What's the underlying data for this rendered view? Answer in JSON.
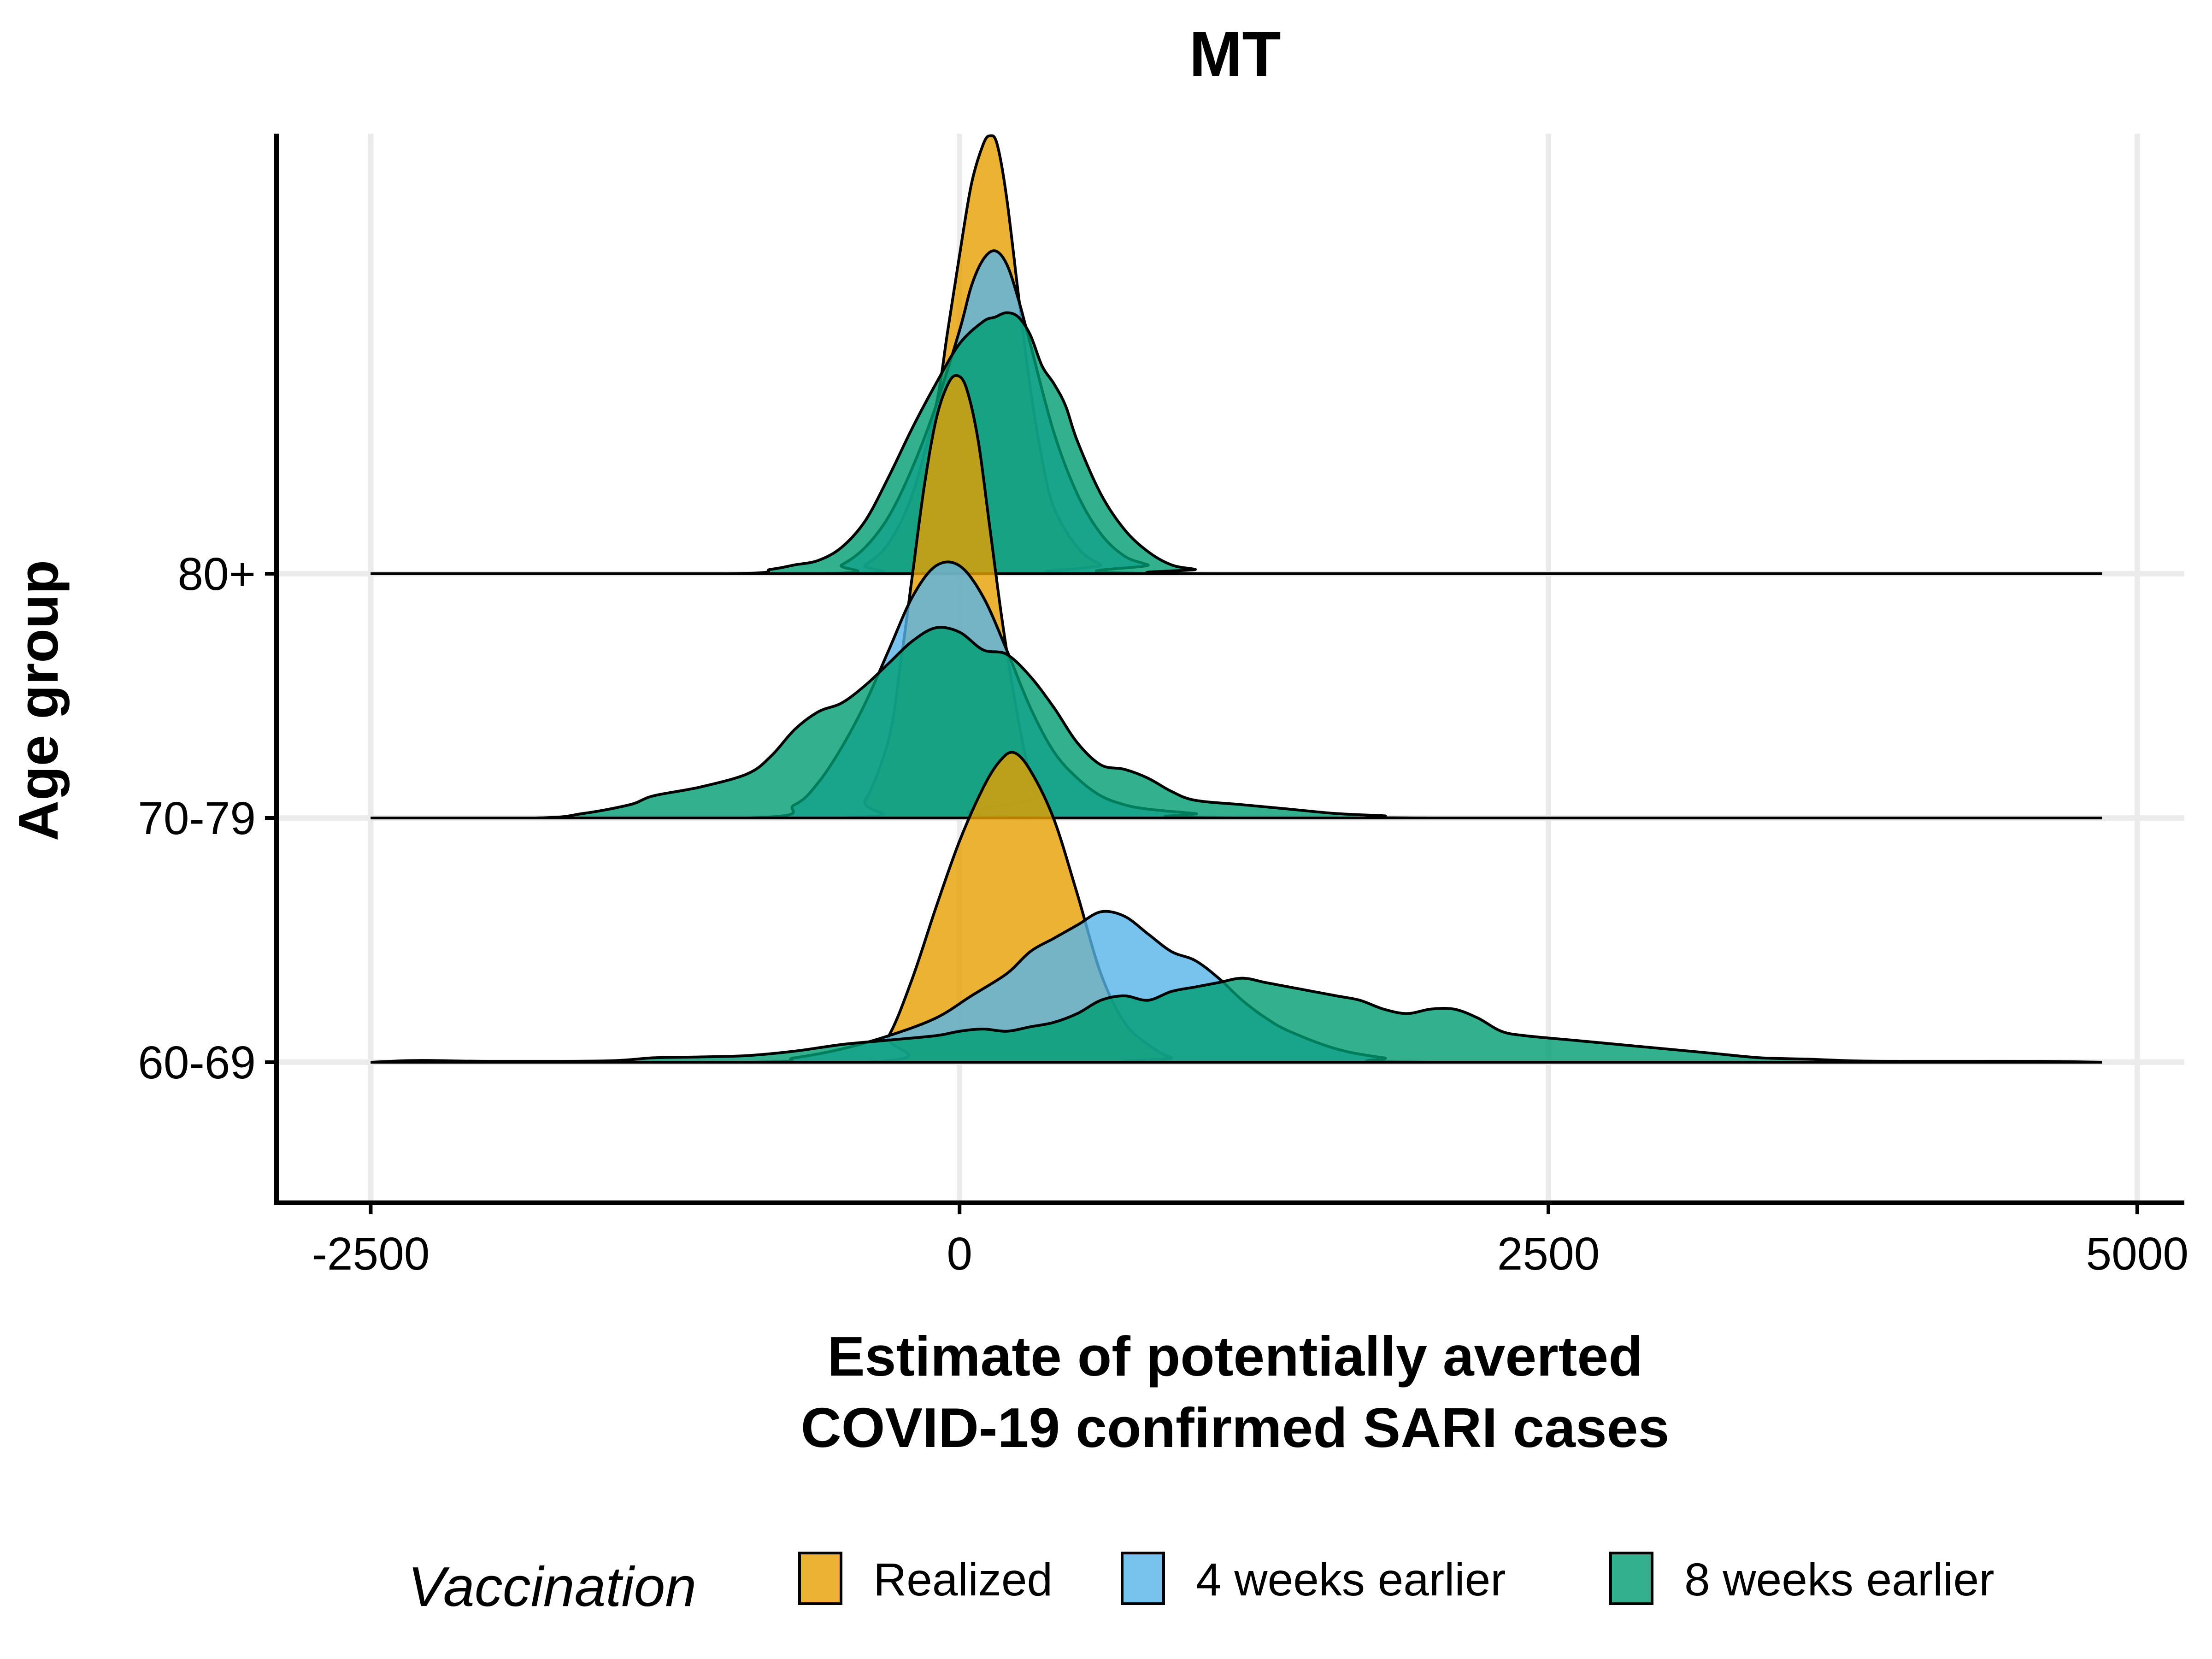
{
  "chart_data": {
    "type": "ridgeline",
    "title": "MT",
    "xlabel": [
      "Estimate of potentially averted",
      "COVID-19 confirmed SARI cases"
    ],
    "ylabel": "Age group",
    "xlim": [
      -2900,
      5200
    ],
    "x_ticks": [
      -2500,
      0,
      2500,
      5000
    ],
    "x_tick_labels": [
      "-2500",
      "0",
      "2500",
      "5000"
    ],
    "grid": true,
    "legend": {
      "title": "Vaccination",
      "position": "bottom",
      "items": [
        {
          "label": "Realized",
          "color": "#E69F00"
        },
        {
          "label": "4 weeks earlier",
          "color": "#56B4E9"
        },
        {
          "label": "8 weeks earlier",
          "color": "#009E73"
        }
      ]
    },
    "x_range": [
      -2500,
      4850
    ],
    "groups": [
      {
        "name": "60-69",
        "series": [
          {
            "name": "Realized",
            "color": "#E69F00",
            "points": [
              [
                -2500,
                0
              ],
              [
                -400,
                0
              ],
              [
                -300,
                0.06
              ],
              [
                -200,
                0.19
              ],
              [
                -100,
                0.35
              ],
              [
                0,
                0.5
              ],
              [
                100,
                0.62
              ],
              [
                170,
                0.68
              ],
              [
                230,
                0.7
              ],
              [
                300,
                0.66
              ],
              [
                400,
                0.55
              ],
              [
                500,
                0.38
              ],
              [
                600,
                0.2
              ],
              [
                700,
                0.09
              ],
              [
                800,
                0.04
              ],
              [
                900,
                0.01
              ],
              [
                1000,
                0
              ],
              [
                4850,
                0
              ]
            ]
          },
          {
            "name": "4 weeks earlier",
            "color": "#56B4E9",
            "points": [
              [
                -2500,
                0
              ],
              [
                -900,
                0
              ],
              [
                -700,
                0.01
              ],
              [
                -500,
                0.03
              ],
              [
                -300,
                0.06
              ],
              [
                -100,
                0.1
              ],
              [
                50,
                0.15
              ],
              [
                200,
                0.2
              ],
              [
                300,
                0.25
              ],
              [
                400,
                0.28
              ],
              [
                500,
                0.31
              ],
              [
                600,
                0.34
              ],
              [
                700,
                0.33
              ],
              [
                800,
                0.29
              ],
              [
                900,
                0.25
              ],
              [
                1000,
                0.23
              ],
              [
                1100,
                0.19
              ],
              [
                1200,
                0.14
              ],
              [
                1300,
                0.1
              ],
              [
                1400,
                0.07
              ],
              [
                1600,
                0.03
              ],
              [
                1800,
                0.01
              ],
              [
                2000,
                0
              ],
              [
                4850,
                0
              ]
            ]
          },
          {
            "name": "8 weeks earlier",
            "color": "#009E73",
            "points": [
              [
                -2500,
                0
              ],
              [
                -2300,
                0.004
              ],
              [
                -2000,
                0.002
              ],
              [
                -1500,
                0.003
              ],
              [
                -1300,
                0.01
              ],
              [
                -1100,
                0.012
              ],
              [
                -900,
                0.015
              ],
              [
                -700,
                0.025
              ],
              [
                -500,
                0.04
              ],
              [
                -300,
                0.05
              ],
              [
                -100,
                0.06
              ],
              [
                0,
                0.07
              ],
              [
                100,
                0.075
              ],
              [
                200,
                0.07
              ],
              [
                300,
                0.08
              ],
              [
                400,
                0.09
              ],
              [
                500,
                0.11
              ],
              [
                600,
                0.14
              ],
              [
                700,
                0.15
              ],
              [
                800,
                0.14
              ],
              [
                900,
                0.16
              ],
              [
                1000,
                0.17
              ],
              [
                1100,
                0.18
              ],
              [
                1200,
                0.19
              ],
              [
                1300,
                0.18
              ],
              [
                1400,
                0.17
              ],
              [
                1500,
                0.16
              ],
              [
                1600,
                0.15
              ],
              [
                1700,
                0.14
              ],
              [
                1800,
                0.12
              ],
              [
                1900,
                0.11
              ],
              [
                2000,
                0.12
              ],
              [
                2100,
                0.12
              ],
              [
                2200,
                0.1
              ],
              [
                2300,
                0.07
              ],
              [
                2400,
                0.06
              ],
              [
                2600,
                0.05
              ],
              [
                2800,
                0.04
              ],
              [
                3000,
                0.03
              ],
              [
                3200,
                0.02
              ],
              [
                3400,
                0.01
              ],
              [
                3600,
                0.007
              ],
              [
                3800,
                0.003
              ],
              [
                4000,
                0.002
              ],
              [
                4300,
                0.002
              ],
              [
                4600,
                0.002
              ],
              [
                4850,
                0
              ]
            ]
          }
        ]
      },
      {
        "name": "70-79",
        "series": [
          {
            "name": "Realized",
            "color": "#E69F00",
            "points": [
              [
                -2500,
                0
              ],
              [
                -500,
                0
              ],
              [
                -400,
                0.04
              ],
              [
                -300,
                0.18
              ],
              [
                -250,
                0.35
              ],
              [
                -200,
                0.55
              ],
              [
                -150,
                0.75
              ],
              [
                -100,
                0.9
              ],
              [
                -50,
                0.98
              ],
              [
                -10,
                1.0
              ],
              [
                30,
                0.97
              ],
              [
                80,
                0.85
              ],
              [
                130,
                0.65
              ],
              [
                180,
                0.45
              ],
              [
                230,
                0.28
              ],
              [
                280,
                0.14
              ],
              [
                330,
                0.05
              ],
              [
                380,
                0
              ],
              [
                4850,
                0
              ]
            ]
          },
          {
            "name": "4 weeks earlier",
            "color": "#56B4E9",
            "points": [
              [
                -2500,
                0
              ],
              [
                -900,
                0
              ],
              [
                -700,
                0.03
              ],
              [
                -600,
                0.08
              ],
              [
                -500,
                0.16
              ],
              [
                -400,
                0.26
              ],
              [
                -300,
                0.38
              ],
              [
                -200,
                0.5
              ],
              [
                -100,
                0.57
              ],
              [
                0,
                0.57
              ],
              [
                100,
                0.5
              ],
              [
                200,
                0.38
              ],
              [
                300,
                0.25
              ],
              [
                400,
                0.15
              ],
              [
                500,
                0.09
              ],
              [
                600,
                0.05
              ],
              [
                700,
                0.03
              ],
              [
                800,
                0.02
              ],
              [
                1000,
                0.01
              ],
              [
                1200,
                0
              ],
              [
                4850,
                0
              ]
            ]
          },
          {
            "name": "8 weeks earlier",
            "color": "#009E73",
            "points": [
              [
                -2500,
                0
              ],
              [
                -1800,
                0
              ],
              [
                -1600,
                0.01
              ],
              [
                -1400,
                0.03
              ],
              [
                -1300,
                0.05
              ],
              [
                -1100,
                0.07
              ],
              [
                -900,
                0.1
              ],
              [
                -800,
                0.14
              ],
              [
                -700,
                0.2
              ],
              [
                -600,
                0.24
              ],
              [
                -500,
                0.26
              ],
              [
                -400,
                0.3
              ],
              [
                -300,
                0.35
              ],
              [
                -200,
                0.4
              ],
              [
                -100,
                0.43
              ],
              [
                0,
                0.42
              ],
              [
                100,
                0.38
              ],
              [
                200,
                0.37
              ],
              [
                300,
                0.32
              ],
              [
                400,
                0.25
              ],
              [
                500,
                0.17
              ],
              [
                600,
                0.12
              ],
              [
                700,
                0.11
              ],
              [
                800,
                0.09
              ],
              [
                900,
                0.06
              ],
              [
                1000,
                0.04
              ],
              [
                1200,
                0.03
              ],
              [
                1400,
                0.02
              ],
              [
                1600,
                0.01
              ],
              [
                1800,
                0.005
              ],
              [
                2000,
                0
              ],
              [
                4850,
                0
              ]
            ]
          }
        ]
      },
      {
        "name": "80+",
        "series": [
          {
            "name": "Realized",
            "color": "#E69F00",
            "points": [
              [
                -2500,
                0
              ],
              [
                -500,
                0
              ],
              [
                -400,
                0.02
              ],
              [
                -300,
                0.07
              ],
              [
                -200,
                0.18
              ],
              [
                -100,
                0.38
              ],
              [
                -50,
                0.55
              ],
              [
                0,
                0.72
              ],
              [
                50,
                0.88
              ],
              [
                100,
                0.97
              ],
              [
                130,
                0.99
              ],
              [
                160,
                0.97
              ],
              [
                200,
                0.85
              ],
              [
                250,
                0.63
              ],
              [
                300,
                0.42
              ],
              [
                350,
                0.26
              ],
              [
                400,
                0.15
              ],
              [
                500,
                0.06
              ],
              [
                600,
                0.02
              ],
              [
                700,
                0
              ],
              [
                4850,
                0
              ]
            ]
          },
          {
            "name": "4 weeks earlier",
            "color": "#56B4E9",
            "points": [
              [
                -2500,
                0
              ],
              [
                -600,
                0
              ],
              [
                -500,
                0.02
              ],
              [
                -400,
                0.06
              ],
              [
                -300,
                0.13
              ],
              [
                -200,
                0.24
              ],
              [
                -100,
                0.38
              ],
              [
                0,
                0.55
              ],
              [
                50,
                0.65
              ],
              [
                100,
                0.71
              ],
              [
                150,
                0.73
              ],
              [
                200,
                0.7
              ],
              [
                250,
                0.62
              ],
              [
                300,
                0.52
              ],
              [
                400,
                0.32
              ],
              [
                500,
                0.18
              ],
              [
                600,
                0.09
              ],
              [
                700,
                0.04
              ],
              [
                800,
                0.02
              ],
              [
                900,
                0
              ],
              [
                4850,
                0
              ]
            ]
          },
          {
            "name": "8 weeks earlier",
            "color": "#009E73",
            "points": [
              [
                -2500,
                0
              ],
              [
                -1000,
                0
              ],
              [
                -800,
                0.01
              ],
              [
                -700,
                0.02
              ],
              [
                -600,
                0.03
              ],
              [
                -500,
                0.06
              ],
              [
                -400,
                0.12
              ],
              [
                -300,
                0.22
              ],
              [
                -200,
                0.33
              ],
              [
                -100,
                0.43
              ],
              [
                0,
                0.52
              ],
              [
                100,
                0.57
              ],
              [
                150,
                0.58
              ],
              [
                200,
                0.59
              ],
              [
                250,
                0.58
              ],
              [
                300,
                0.54
              ],
              [
                350,
                0.47
              ],
              [
                400,
                0.43
              ],
              [
                450,
                0.38
              ],
              [
                500,
                0.3
              ],
              [
                600,
                0.18
              ],
              [
                700,
                0.1
              ],
              [
                800,
                0.05
              ],
              [
                900,
                0.02
              ],
              [
                1000,
                0.01
              ],
              [
                1100,
                0
              ],
              [
                4850,
                0
              ]
            ]
          }
        ]
      }
    ]
  }
}
